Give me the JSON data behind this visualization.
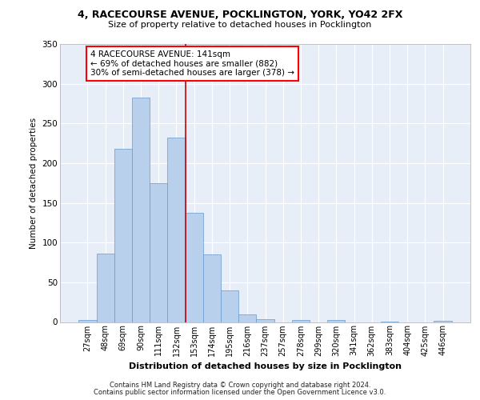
{
  "title1": "4, RACECOURSE AVENUE, POCKLINGTON, YORK, YO42 2FX",
  "title2": "Size of property relative to detached houses in Pocklington",
  "xlabel": "Distribution of detached houses by size in Pocklington",
  "ylabel": "Number of detached properties",
  "footer1": "Contains HM Land Registry data © Crown copyright and database right 2024.",
  "footer2": "Contains public sector information licensed under the Open Government Licence v3.0.",
  "annotation_line1": "4 RACECOURSE AVENUE: 141sqm",
  "annotation_line2": "← 69% of detached houses are smaller (882)",
  "annotation_line3": "30% of semi-detached houses are larger (378) →",
  "bar_color": "#b8d0ec",
  "bar_edge_color": "#6699cc",
  "subject_line_color": "#cc0000",
  "background_color": "#e8eef8",
  "grid_color": "#ffffff",
  "categories": [
    "27sqm",
    "48sqm",
    "69sqm",
    "90sqm",
    "111sqm",
    "132sqm",
    "153sqm",
    "174sqm",
    "195sqm",
    "216sqm",
    "237sqm",
    "257sqm",
    "278sqm",
    "299sqm",
    "320sqm",
    "341sqm",
    "362sqm",
    "383sqm",
    "404sqm",
    "425sqm",
    "446sqm"
  ],
  "values": [
    3,
    86,
    218,
    283,
    175,
    232,
    137,
    85,
    40,
    10,
    4,
    0,
    3,
    0,
    3,
    0,
    0,
    1,
    0,
    0,
    2
  ],
  "subject_vline_x": 5.5,
  "ylim": [
    0,
    350
  ],
  "yticks": [
    0,
    50,
    100,
    150,
    200,
    250,
    300,
    350
  ]
}
